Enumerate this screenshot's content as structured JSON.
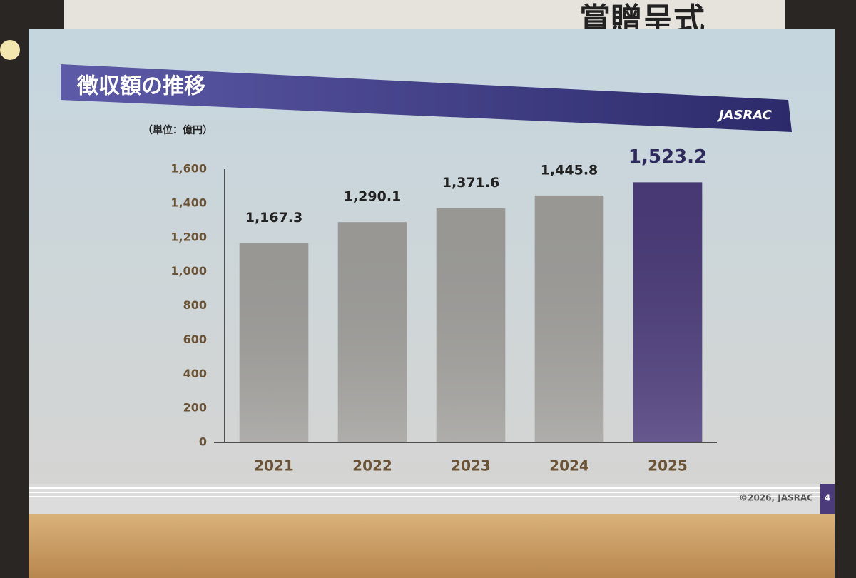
{
  "banner": {
    "text": "賞贈呈式"
  },
  "slide": {
    "footer": "©2026, JASRAC",
    "page": "4",
    "logo": "JASRAC"
  },
  "chart_data": {
    "type": "bar",
    "title": "徴収額の推移",
    "unit_label": "（単位：億円）",
    "categories": [
      "2021",
      "2022",
      "2023",
      "2024",
      "2025"
    ],
    "values": [
      1167.3,
      1290.1,
      1371.6,
      1445.8,
      1523.2
    ],
    "value_labels": [
      "1,167.3",
      "1,290.1",
      "1,371.6",
      "1,445.8",
      "1,523.2"
    ],
    "colors": [
      "#a09f9c",
      "#a09f9c",
      "#a09f9c",
      "#a09f9c",
      "#4b3b7a"
    ],
    "ylim": [
      0,
      1600
    ],
    "yticks": [
      0,
      200,
      400,
      600,
      800,
      {
        "value": 1000,
        "label": "1,000"
      },
      {
        "value": 1200,
        "label": "1,200"
      },
      {
        "value": 1400,
        "label": "1,400"
      },
      {
        "value": 1600,
        "label": "1,600"
      }
    ],
    "grid": false
  }
}
